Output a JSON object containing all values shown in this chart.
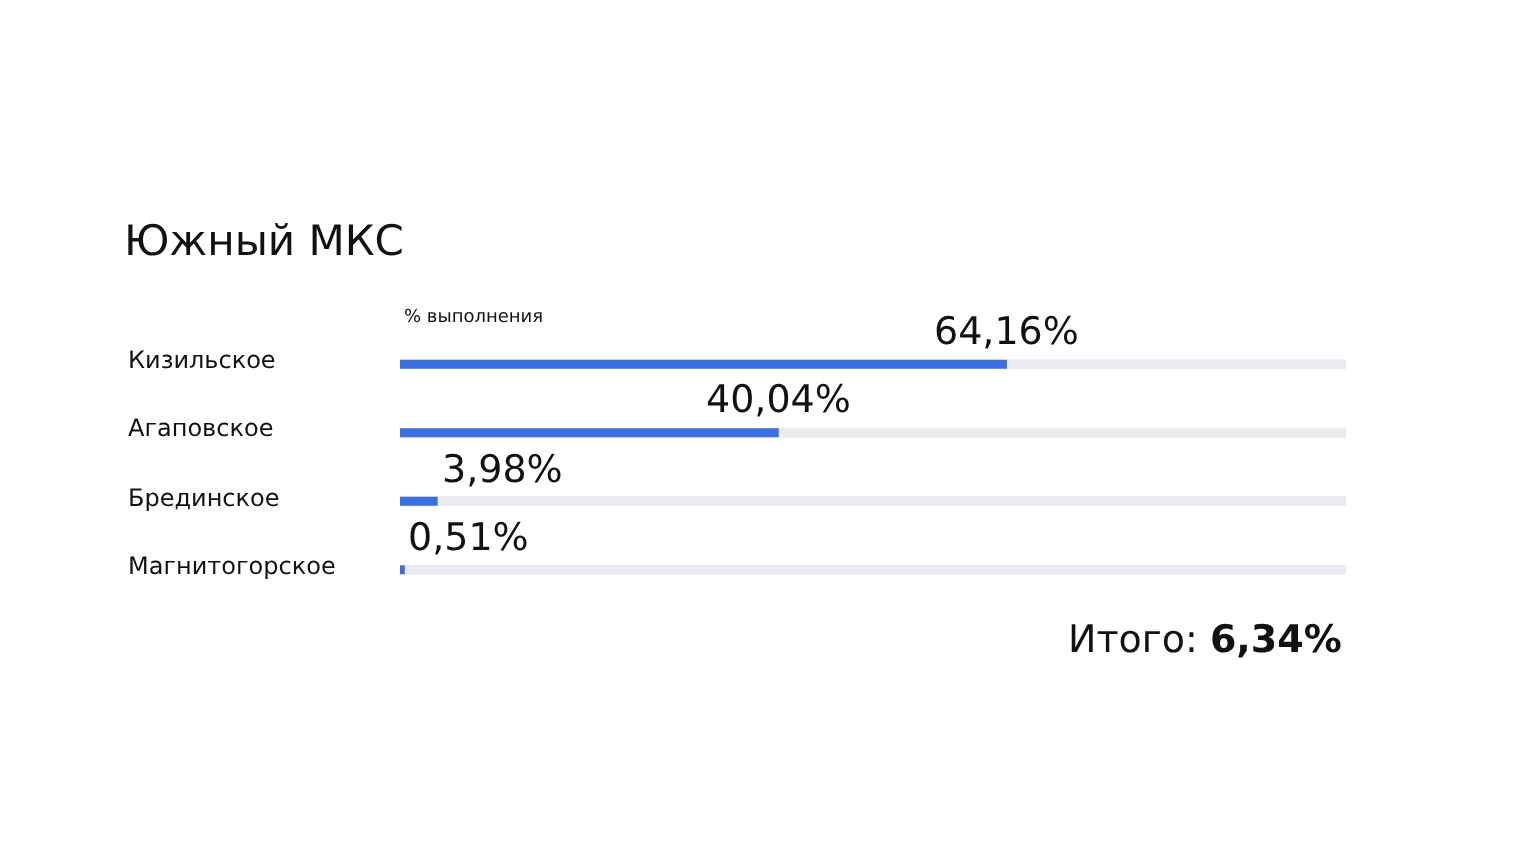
{
  "chart_data": {
    "type": "bar",
    "orientation": "horizontal",
    "title": "Южный МКС",
    "categories": [
      "Кизильское",
      "Агаповское",
      "Брединское",
      "Магнитогорское"
    ],
    "values": [
      64.16,
      40.04,
      3.98,
      0.51
    ],
    "value_labels": [
      "64,16%",
      "40,04%",
      "3,98%",
      "0,51%"
    ],
    "color": "#3b6fe0",
    "xlim": [
      0,
      100
    ],
    "tick_labels": false,
    "grid": false,
    "legend": false,
    "annotations": [
      "% выполнения",
      "Итого: 6,34%"
    ]
  }
}
